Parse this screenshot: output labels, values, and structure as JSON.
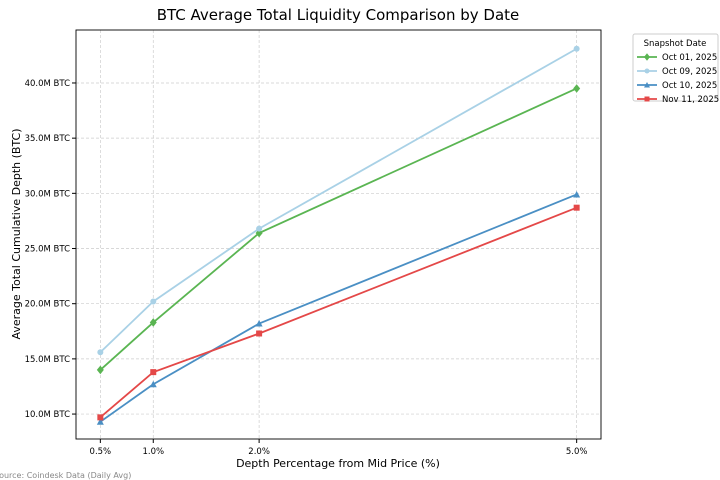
{
  "chart_data": {
    "type": "line",
    "title": "BTC Average Total Liquidity Comparison by Date",
    "xlabel": "Depth Percentage from Mid Price (%)",
    "ylabel": "Average Total Cumulative Depth (BTC)",
    "x": [
      0.5,
      1.0,
      2.0,
      5.0
    ],
    "x_tick_labels": [
      "0.5%",
      "1.0%",
      "2.0%",
      "5.0%"
    ],
    "y_ticks": [
      10,
      15,
      20,
      25,
      30,
      35,
      40
    ],
    "y_tick_labels": [
      "10.0M BTC",
      "15.0M BTC",
      "20.0M BTC",
      "25.0M BTC",
      "30.0M BTC",
      "35.0M BTC",
      "40.0M BTC"
    ],
    "y_unit": "millions BTC",
    "xlim": [
      0.27,
      5.23
    ],
    "ylim": [
      7.74,
      44.8
    ],
    "grid": true,
    "legend": {
      "title": "Snapshot Date",
      "placement": "outside-top-right"
    },
    "series": [
      {
        "name": "Oct 01, 2025",
        "color": "#5ab552",
        "marker": "diamond",
        "values": [
          14.0,
          18.3,
          26.4,
          39.5
        ]
      },
      {
        "name": "Oct 09, 2025",
        "color": "#a9d1e6",
        "marker": "circle",
        "values": [
          15.6,
          20.2,
          26.8,
          43.1
        ]
      },
      {
        "name": "Oct 10, 2025",
        "color": "#4a8fc4",
        "marker": "triangle",
        "values": [
          9.3,
          12.7,
          18.2,
          29.9
        ]
      },
      {
        "name": "Nov 11, 2025",
        "color": "#e44848",
        "marker": "square",
        "values": [
          9.7,
          13.8,
          17.3,
          28.7
        ]
      }
    ],
    "annotation": "Source: Coindesk Data (Daily Avg)"
  }
}
